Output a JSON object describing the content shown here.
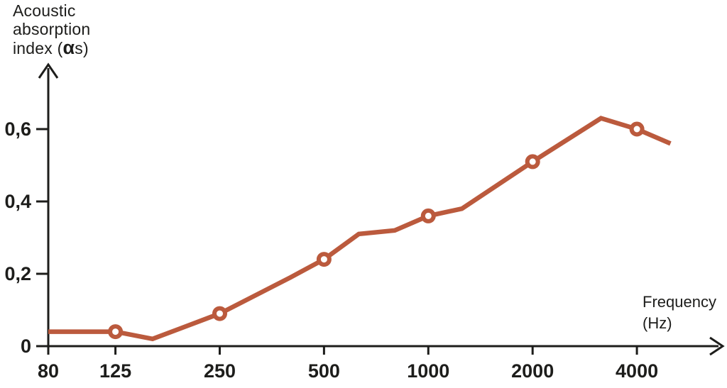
{
  "page": {
    "background": "#ffffff"
  },
  "chart_data": {
    "type": "line",
    "title": "Acoustic absorption index vs frequency",
    "ylabel_lines": [
      "Acoustic",
      "absorption"
    ],
    "ylabel_line3": {
      "prefix": "index (",
      "alpha": "α",
      "suffix": "s)"
    },
    "xlabel_lines": [
      "Frequency",
      "(Hz)"
    ],
    "x_scale": "log2",
    "xlim": [
      80,
      7000
    ],
    "ylim": [
      0,
      0.78
    ],
    "grid": false,
    "legend": "none",
    "x_ticks": [
      {
        "value": 80,
        "label": "80"
      },
      {
        "value": 125,
        "label": "125"
      },
      {
        "value": 250,
        "label": "250"
      },
      {
        "value": 500,
        "label": "500"
      },
      {
        "value": 1000,
        "label": "1000"
      },
      {
        "value": 2000,
        "label": "2000"
      },
      {
        "value": 4000,
        "label": "4000"
      }
    ],
    "y_ticks": [
      {
        "value": 0,
        "label": "0"
      },
      {
        "value": 0.2,
        "label": "0,2"
      },
      {
        "value": 0.4,
        "label": "0,4"
      },
      {
        "value": 0.6,
        "label": "0,6"
      }
    ],
    "series": [
      {
        "name": "absorption-curve",
        "color": "#bb5a3d",
        "points": [
          {
            "freq": 80,
            "alpha_s": 0.04
          },
          {
            "freq": 125,
            "alpha_s": 0.04
          },
          {
            "freq": 160,
            "alpha_s": 0.02
          },
          {
            "freq": 250,
            "alpha_s": 0.09
          },
          {
            "freq": 400,
            "alpha_s": 0.19
          },
          {
            "freq": 500,
            "alpha_s": 0.24
          },
          {
            "freq": 630,
            "alpha_s": 0.31
          },
          {
            "freq": 800,
            "alpha_s": 0.32
          },
          {
            "freq": 1000,
            "alpha_s": 0.36
          },
          {
            "freq": 1250,
            "alpha_s": 0.38
          },
          {
            "freq": 2000,
            "alpha_s": 0.51
          },
          {
            "freq": 3150,
            "alpha_s": 0.63
          },
          {
            "freq": 4000,
            "alpha_s": 0.6
          },
          {
            "freq": 5000,
            "alpha_s": 0.56
          }
        ],
        "marker_freqs": [
          125,
          250,
          500,
          1000,
          2000,
          4000
        ]
      }
    ],
    "colors": {
      "line": "#bb5a3d",
      "marker_fill": "#ffffff",
      "axis": "#1d1d1b",
      "text": "#1d1d1b"
    }
  }
}
